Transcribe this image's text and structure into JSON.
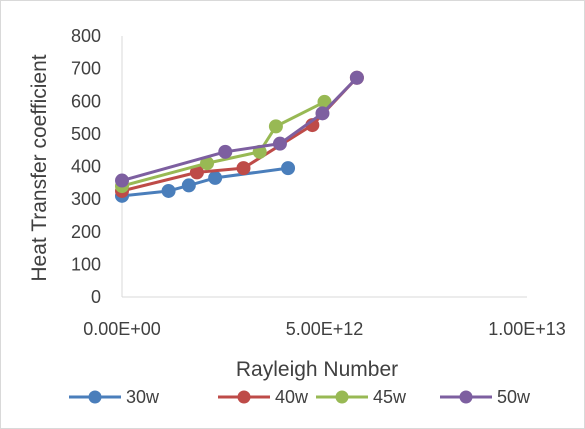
{
  "chart_data": {
    "type": "line",
    "title": "",
    "xlabel": "Rayleigh Number",
    "ylabel": "Heat Transfer coefficient",
    "xlim": [
      0,
      10000000000000
    ],
    "ylim": [
      0,
      800
    ],
    "x_ticks": [
      0,
      5000000000000,
      10000000000000
    ],
    "x_tick_labels": [
      "0.00E+00",
      "5.00E+12",
      "1.00E+13"
    ],
    "y_ticks": [
      0,
      100,
      200,
      300,
      400,
      500,
      600,
      700,
      800
    ],
    "y_tick_labels": [
      "0",
      "100",
      "200",
      "300",
      "400",
      "500",
      "600",
      "700",
      "800"
    ],
    "grid": false,
    "legend_position": "bottom",
    "series": [
      {
        "name": "30w",
        "color": "#4a7ebb",
        "points": [
          {
            "x": 0,
            "y": 310
          },
          {
            "x": 1150000000000,
            "y": 325
          },
          {
            "x": 1650000000000,
            "y": 342
          },
          {
            "x": 2300000000000,
            "y": 365
          },
          {
            "x": 4100000000000,
            "y": 395
          }
        ]
      },
      {
        "name": "40w",
        "color": "#be4b48",
        "points": [
          {
            "x": 0,
            "y": 325
          },
          {
            "x": 1850000000000,
            "y": 382
          },
          {
            "x": 3000000000000,
            "y": 395
          },
          {
            "x": 4700000000000,
            "y": 527
          },
          {
            "x": 5800000000000,
            "y": 672
          }
        ]
      },
      {
        "name": "45w",
        "color": "#98b954",
        "points": [
          {
            "x": 0,
            "y": 340
          },
          {
            "x": 2100000000000,
            "y": 410
          },
          {
            "x": 3400000000000,
            "y": 445
          },
          {
            "x": 3800000000000,
            "y": 523
          },
          {
            "x": 5000000000000,
            "y": 598
          }
        ]
      },
      {
        "name": "50w",
        "color": "#7d5fa0",
        "points": [
          {
            "x": 0,
            "y": 357
          },
          {
            "x": 2550000000000,
            "y": 445
          },
          {
            "x": 3900000000000,
            "y": 470
          },
          {
            "x": 4950000000000,
            "y": 563
          },
          {
            "x": 5800000000000,
            "y": 672
          }
        ]
      }
    ]
  }
}
